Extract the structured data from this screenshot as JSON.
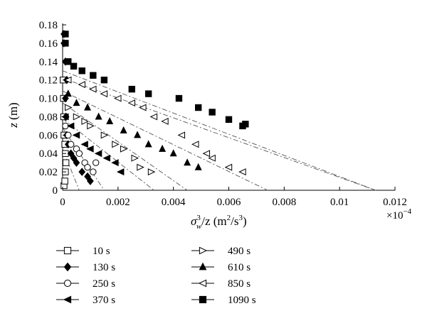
{
  "chart_data": {
    "type": "scatter",
    "xlabel": "σ³w/z (m²/s³)",
    "xlabel_parts": {
      "sigma": "σ",
      "sup": "3",
      "sub": "w",
      "rest": "/z (m",
      "sup2": "2",
      "mid": "/s",
      "sup3": "3",
      "end": ")"
    },
    "ylabel": "z (m)",
    "ylabel_parts": {
      "var": "z",
      "unit": " (m)"
    },
    "x_multiplier": "×10⁻⁴",
    "x_multiplier_parts": {
      "base": "×10",
      "exp": "−4"
    },
    "xlim": [
      0,
      0.012
    ],
    "ylim": [
      0,
      0.18
    ],
    "xticks": [
      "0",
      "0.002",
      "0.004",
      "0.006",
      "0.008",
      "0.01",
      "0.012"
    ],
    "yticks": [
      "0",
      "0.02",
      "0.04",
      "0.06",
      "0.08",
      "0.10",
      "0.12",
      "0.14",
      "0.16",
      "0.18"
    ],
    "grid": false,
    "legend_position": "bottom-left",
    "series": [
      {
        "name": "10 s",
        "marker": "open-square",
        "points": [
          [
            5e-05,
            0.005
          ],
          [
            8e-05,
            0.01
          ],
          [
            0.0001,
            0.02
          ],
          [
            0.00012,
            0.03
          ],
          [
            0.0001,
            0.04
          ],
          [
            8e-05,
            0.05
          ],
          [
            5e-05,
            0.06
          ],
          [
            4e-05,
            0.08
          ],
          [
            3e-05,
            0.1
          ],
          [
            2e-05,
            0.12
          ]
        ]
      },
      {
        "name": "130 s",
        "marker": "filled-diamond",
        "points": [
          [
            5e-05,
            0.17
          ],
          [
            5e-05,
            0.16
          ],
          [
            0.0001,
            0.14
          ],
          [
            0.00015,
            0.12
          ],
          [
            0.0001,
            0.1
          ],
          [
            0.00012,
            0.08
          ],
          [
            0.00015,
            0.06
          ],
          [
            0.0002,
            0.05
          ],
          [
            0.0003,
            0.04
          ],
          [
            0.0004,
            0.035
          ],
          [
            0.0005,
            0.03
          ],
          [
            0.0007,
            0.02
          ],
          [
            0.0009,
            0.015
          ],
          [
            0.001,
            0.01
          ]
        ],
        "fit": [
          [
            0,
            0.045
          ],
          [
            0.0006,
            0
          ]
        ]
      },
      {
        "name": "250 s",
        "marker": "open-circle",
        "points": [
          [
            0.0001,
            0.07
          ],
          [
            0.0002,
            0.06
          ],
          [
            0.0003,
            0.05
          ],
          [
            0.0005,
            0.045
          ],
          [
            0.0006,
            0.04
          ],
          [
            0.0008,
            0.03
          ],
          [
            0.0009,
            0.025
          ],
          [
            0.0011,
            0.02
          ],
          [
            0.0012,
            0.03
          ]
        ],
        "fit": [
          [
            0,
            0.068
          ],
          [
            0.0015,
            0
          ]
        ]
      },
      {
        "name": "370 s",
        "marker": "filled-left-triangle",
        "points": [
          [
            0.0001,
            0.08
          ],
          [
            0.0003,
            0.07
          ],
          [
            0.0005,
            0.06
          ],
          [
            0.0008,
            0.05
          ],
          [
            0.001,
            0.045
          ],
          [
            0.0013,
            0.04
          ],
          [
            0.0016,
            0.035
          ],
          [
            0.0019,
            0.03
          ],
          [
            0.0021,
            0.02
          ]
        ],
        "fit": [
          [
            0,
            0.078
          ],
          [
            0.0033,
            0
          ]
        ]
      },
      {
        "name": "490 s",
        "marker": "open-right-triangle",
        "points": [
          [
            0.0002,
            0.09
          ],
          [
            0.0005,
            0.08
          ],
          [
            0.0008,
            0.075
          ],
          [
            0.001,
            0.07
          ],
          [
            0.0015,
            0.06
          ],
          [
            0.0019,
            0.05
          ],
          [
            0.0022,
            0.045
          ],
          [
            0.0026,
            0.035
          ],
          [
            0.0028,
            0.025
          ],
          [
            0.0032,
            0.02
          ]
        ],
        "fit": [
          [
            0,
            0.095
          ],
          [
            0.0045,
            0
          ]
        ]
      },
      {
        "name": "610 s",
        "marker": "filled-triangle",
        "points": [
          [
            0.0002,
            0.105
          ],
          [
            0.0005,
            0.095
          ],
          [
            0.0009,
            0.09
          ],
          [
            0.0013,
            0.08
          ],
          [
            0.0017,
            0.075
          ],
          [
            0.0022,
            0.065
          ],
          [
            0.0027,
            0.06
          ],
          [
            0.0031,
            0.05
          ],
          [
            0.0036,
            0.045
          ],
          [
            0.004,
            0.04
          ],
          [
            0.0045,
            0.03
          ],
          [
            0.0049,
            0.025
          ]
        ],
        "fit": [
          [
            0,
            0.108
          ],
          [
            0.0074,
            0
          ]
        ]
      },
      {
        "name": "850 s",
        "marker": "open-left-triangle",
        "points": [
          [
            0.0002,
            0.12
          ],
          [
            0.0007,
            0.115
          ],
          [
            0.0011,
            0.11
          ],
          [
            0.0015,
            0.105
          ],
          [
            0.002,
            0.1
          ],
          [
            0.0025,
            0.095
          ],
          [
            0.0029,
            0.09
          ],
          [
            0.0033,
            0.08
          ],
          [
            0.0037,
            0.075
          ],
          [
            0.0043,
            0.06
          ],
          [
            0.0048,
            0.05
          ],
          [
            0.0052,
            0.04
          ],
          [
            0.0054,
            0.035
          ],
          [
            0.006,
            0.025
          ],
          [
            0.0065,
            0.02
          ]
        ],
        "fit": [
          [
            0,
            0.122
          ],
          [
            0.0113,
            0
          ]
        ]
      },
      {
        "name": "1090 s",
        "marker": "filled-square",
        "points": [
          [
            0.0001,
            0.17
          ],
          [
            0.0001,
            0.16
          ],
          [
            0.0002,
            0.14
          ],
          [
            0.0004,
            0.135
          ],
          [
            0.0007,
            0.13
          ],
          [
            0.0011,
            0.125
          ],
          [
            0.0015,
            0.12
          ],
          [
            0.0025,
            0.11
          ],
          [
            0.0031,
            0.105
          ],
          [
            0.0042,
            0.1
          ],
          [
            0.0049,
            0.09
          ],
          [
            0.0054,
            0.085
          ],
          [
            0.006,
            0.077
          ],
          [
            0.0065,
            0.07
          ],
          [
            0.0066,
            0.072
          ]
        ],
        "fit": [
          [
            0,
            0.13
          ],
          [
            0.0113,
            0
          ]
        ]
      }
    ]
  }
}
